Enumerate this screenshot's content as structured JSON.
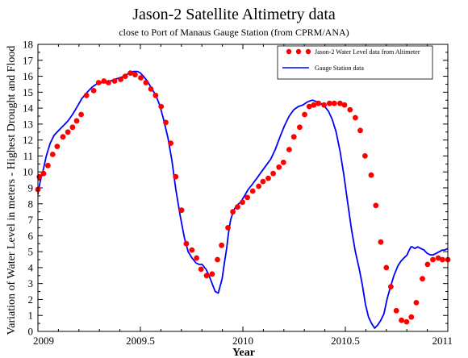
{
  "chart_data": {
    "type": "line",
    "title": "Jason-2 Satellite Altimetry data",
    "subtitle": "close to Port of Manaus Gauge Station (from CPRM/ANA)",
    "xlabel": "Year",
    "ylabel": "Variation of Water Level in meters  - Highest Drought and Flood",
    "xlim": [
      2009,
      2011
    ],
    "ylim": [
      0,
      18
    ],
    "x_ticks": [
      {
        "value": 2009,
        "label": "2009"
      },
      {
        "value": 2009.5,
        "label": "2009.5"
      },
      {
        "value": 2010,
        "label": "2010"
      },
      {
        "value": 2010.5,
        "label": "2010.5"
      },
      {
        "value": 2011,
        "label": "2011"
      }
    ],
    "y_ticks": [
      0,
      1,
      2,
      3,
      4,
      5,
      6,
      7,
      8,
      9,
      10,
      11,
      12,
      13,
      14,
      15,
      16,
      17,
      18
    ],
    "grid": false,
    "legend_position": "top-right",
    "series": [
      {
        "name": "Jason-2 Water Level data from Altimeter",
        "style": "markers",
        "color": "#ff0000",
        "x": [
          2009.0,
          2009.007,
          2009.027,
          2009.049,
          2009.072,
          2009.094,
          2009.122,
          2009.146,
          2009.169,
          2009.189,
          2009.211,
          2009.237,
          2009.272,
          2009.296,
          2009.322,
          2009.344,
          2009.374,
          2009.404,
          2009.426,
          2009.451,
          2009.474,
          2009.502,
          2009.527,
          2009.551,
          2009.574,
          2009.601,
          2009.624,
          2009.648,
          2009.672,
          2009.701,
          2009.724,
          2009.751,
          2009.774,
          2009.796,
          2009.823,
          2009.85,
          2009.876,
          2009.896,
          2009.927,
          2009.951,
          2009.974,
          2009.998,
          2010.022,
          2010.048,
          2010.077,
          2010.098,
          2010.124,
          2010.148,
          2010.176,
          2010.198,
          2010.226,
          2010.249,
          2010.277,
          2010.301,
          2010.324,
          2010.346,
          2010.369,
          2010.396,
          2010.423,
          2010.446,
          2010.474,
          2010.496,
          2010.523,
          2010.549,
          2010.573,
          2010.596,
          2010.626,
          2010.649,
          2010.673,
          2010.7,
          2010.722,
          2010.749,
          2010.774,
          2010.799,
          2010.822,
          2010.846,
          2010.876,
          2010.901,
          2010.927,
          2010.953,
          2010.974,
          2011.0
        ],
        "y": [
          8.9,
          9.7,
          9.9,
          10.4,
          11.1,
          11.6,
          12.2,
          12.5,
          12.8,
          13.2,
          13.6,
          14.8,
          15.1,
          15.6,
          15.7,
          15.6,
          15.7,
          15.8,
          16.0,
          16.2,
          16.1,
          15.9,
          15.6,
          15.2,
          14.8,
          14.1,
          13.1,
          11.8,
          9.7,
          7.6,
          5.5,
          5.1,
          4.6,
          3.9,
          3.5,
          3.6,
          4.5,
          5.4,
          6.5,
          7.5,
          7.8,
          8.1,
          8.4,
          8.8,
          9.1,
          9.4,
          9.6,
          9.9,
          10.3,
          10.6,
          11.4,
          12.2,
          12.8,
          13.6,
          14.1,
          14.2,
          14.3,
          14.2,
          14.3,
          14.3,
          14.3,
          14.2,
          13.9,
          13.4,
          12.6,
          11.0,
          9.8,
          7.9,
          5.6,
          4.0,
          2.8,
          1.3,
          0.7,
          0.6,
          0.9,
          1.8,
          3.3,
          4.2,
          4.5,
          4.6,
          4.5,
          4.5
        ]
      },
      {
        "name": "Gauge Station data",
        "style": "line",
        "color": "#0000ff",
        "x": [
          2009.0,
          2009.011,
          2009.027,
          2009.041,
          2009.06,
          2009.079,
          2009.101,
          2009.124,
          2009.147,
          2009.169,
          2009.192,
          2009.214,
          2009.241,
          2009.263,
          2009.285,
          2009.308,
          2009.331,
          2009.353,
          2009.376,
          2009.398,
          2009.421,
          2009.444,
          2009.466,
          2009.485,
          2009.5,
          2009.515,
          2009.534,
          2009.552,
          2009.575,
          2009.594,
          2009.613,
          2009.635,
          2009.654,
          2009.673,
          2009.695,
          2009.714,
          2009.733,
          2009.752,
          2009.771,
          2009.786,
          2009.801,
          2009.82,
          2009.835,
          2009.85,
          2009.865,
          2009.88,
          2009.899,
          2009.91,
          2009.921,
          2009.929,
          2009.94,
          2009.955,
          2009.97,
          2009.989,
          2010.008,
          2010.026,
          2010.045,
          2010.068,
          2010.09,
          2010.113,
          2010.136,
          2010.158,
          2010.181,
          2010.203,
          2010.226,
          2010.248,
          2010.271,
          2010.293,
          2010.316,
          2010.339,
          2010.361,
          2010.38,
          2010.399,
          2010.418,
          2010.436,
          2010.455,
          2010.474,
          2010.493,
          2010.511,
          2010.53,
          2010.549,
          2010.568,
          2010.583,
          2010.598,
          2010.613,
          2010.628,
          2010.643,
          2010.658,
          2010.673,
          2010.688,
          2010.703,
          2010.718,
          2010.737,
          2010.756,
          2010.771,
          2010.786,
          2010.801,
          2010.812,
          2010.82,
          2010.827,
          2010.838,
          2010.853,
          2010.868,
          2010.884,
          2010.899,
          2010.914,
          2010.929,
          2010.944,
          2010.959,
          2010.974,
          2010.985,
          2011.0
        ],
        "y": [
          8.6,
          9.4,
          10.2,
          11.0,
          11.8,
          12.3,
          12.6,
          12.9,
          13.2,
          13.6,
          14.1,
          14.6,
          15.0,
          15.3,
          15.5,
          15.6,
          15.6,
          15.7,
          15.8,
          15.9,
          16.0,
          16.2,
          16.3,
          16.3,
          16.2,
          16.0,
          15.7,
          15.3,
          14.8,
          14.2,
          13.3,
          12.1,
          10.7,
          8.9,
          7.2,
          5.9,
          5.0,
          4.6,
          4.3,
          4.2,
          4.2,
          3.9,
          3.5,
          3.0,
          2.5,
          2.4,
          3.3,
          4.3,
          5.2,
          6.1,
          7.0,
          7.6,
          7.9,
          8.1,
          8.5,
          8.9,
          9.2,
          9.6,
          10.0,
          10.4,
          10.8,
          11.4,
          12.2,
          12.9,
          13.5,
          13.9,
          14.1,
          14.2,
          14.4,
          14.5,
          14.4,
          14.3,
          14.1,
          13.8,
          13.3,
          12.5,
          11.3,
          9.8,
          8.1,
          6.4,
          5.0,
          3.9,
          2.9,
          1.7,
          0.9,
          0.5,
          0.2,
          0.4,
          0.7,
          1.1,
          2.0,
          2.7,
          3.5,
          4.1,
          4.4,
          4.6,
          4.8,
          5.1,
          5.3,
          5.3,
          5.2,
          5.3,
          5.2,
          5.1,
          4.9,
          4.8,
          4.8,
          4.9,
          5.0,
          5.1,
          5.1,
          5.2
        ]
      }
    ]
  }
}
